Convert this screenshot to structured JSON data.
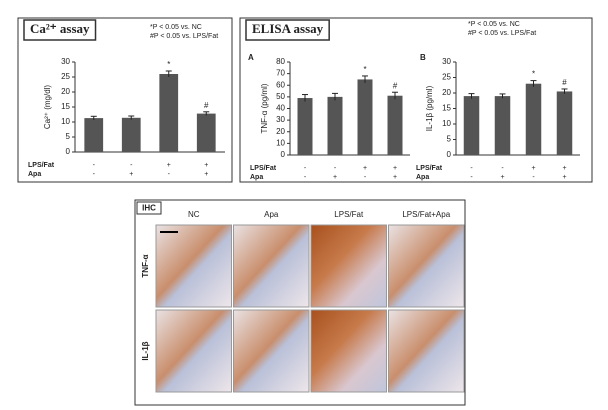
{
  "chart_data": [
    {
      "type": "bar",
      "title": "Ca²⁺ assay",
      "notes": [
        "*P < 0.05 vs. NC",
        "#P < 0.05 vs. LPS/Fat"
      ],
      "y_label": "Ca²⁺ (mg/dl)",
      "ylim": [
        0,
        30
      ],
      "yticks": [
        0,
        5,
        10,
        15,
        20,
        25,
        30
      ],
      "values": [
        11.3,
        11.4,
        26,
        12.8
      ],
      "errors": [
        0.6,
        0.6,
        1.0,
        0.6
      ],
      "annotations": [
        null,
        null,
        "*",
        "#"
      ],
      "color": "#555555",
      "treatments": [
        {
          "name": "LPS/Fat",
          "signs": [
            "-",
            "-",
            "+",
            "+"
          ]
        },
        {
          "name": "Apa",
          "signs": [
            "-",
            "+",
            "-",
            "+"
          ]
        }
      ]
    },
    {
      "type": "bar",
      "title": "ELISA assay",
      "notes": [
        "*P < 0.05 vs. NC",
        "#P < 0.05 vs. LPS/Fat"
      ],
      "panel_label": "A",
      "y_label": "TNF-α (pg/ml)",
      "ylim": [
        0,
        80
      ],
      "yticks": [
        0,
        10,
        20,
        30,
        40,
        50,
        60,
        70,
        80
      ],
      "values": [
        49,
        50,
        65,
        51
      ],
      "errors": [
        3,
        3,
        3,
        3
      ],
      "annotations": [
        null,
        null,
        "*",
        "#"
      ],
      "color": "#555555",
      "treatments": [
        {
          "name": "LPS/Fat",
          "signs": [
            "-",
            "-",
            "+",
            "+"
          ]
        },
        {
          "name": "Apa",
          "signs": [
            "-",
            "+",
            "-",
            "+"
          ]
        }
      ]
    },
    {
      "type": "bar",
      "panel_label": "B",
      "y_label": "IL-1β (pg/ml)",
      "ylim": [
        0,
        30
      ],
      "yticks": [
        0,
        5,
        10,
        15,
        20,
        25,
        30
      ],
      "values": [
        19,
        19,
        23,
        20.5
      ],
      "errors": [
        0.8,
        0.7,
        1.0,
        0.8
      ],
      "annotations": [
        null,
        null,
        "*",
        "#"
      ],
      "color": "#555555",
      "treatments": [
        {
          "name": "LPS/Fat",
          "signs": [
            "-",
            "-",
            "+",
            "+"
          ]
        },
        {
          "name": "Apa",
          "signs": [
            "-",
            "+",
            "-",
            "+"
          ]
        }
      ]
    }
  ],
  "ihc": {
    "title": "IHC",
    "columns": [
      "NC",
      "Apa",
      "LPS/Fat",
      "LPS/Fat+Apa"
    ],
    "rows": [
      "TNF-α",
      "IL-1β"
    ]
  }
}
